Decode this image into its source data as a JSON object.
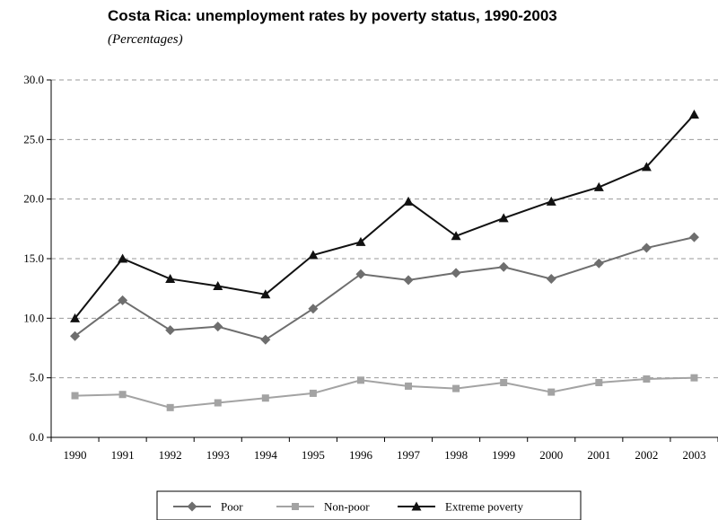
{
  "chart_data": {
    "type": "line",
    "title": "Costa Rica: unemployment rates by poverty status, 1990-2003",
    "subtitle": "(Percentages)",
    "x": [
      "1990",
      "1991",
      "1992",
      "1993",
      "1994",
      "1995",
      "1996",
      "1997",
      "1998",
      "1999",
      "2000",
      "2001",
      "2002",
      "2003"
    ],
    "ylim": [
      0,
      30
    ],
    "yticks": [
      "0.0",
      "5.0",
      "10.0",
      "15.0",
      "20.0",
      "25.0",
      "30.0"
    ],
    "grid": "horizontal dashed",
    "legend_position": "bottom",
    "series": [
      {
        "name": "Poor",
        "color": "#6e6e6e",
        "marker": "diamond",
        "values": [
          8.5,
          11.5,
          9.0,
          9.3,
          8.2,
          10.8,
          13.7,
          13.2,
          13.8,
          14.3,
          13.3,
          14.6,
          15.9,
          16.8
        ]
      },
      {
        "name": "Non-poor",
        "color": "#a3a3a3",
        "marker": "square",
        "values": [
          3.5,
          3.6,
          2.5,
          2.9,
          3.3,
          3.7,
          4.8,
          4.3,
          4.1,
          4.6,
          3.8,
          4.6,
          4.9,
          5.0
        ]
      },
      {
        "name": "Extreme poverty",
        "color": "#111111",
        "marker": "triangle",
        "values": [
          10.0,
          15.0,
          13.3,
          12.7,
          12.0,
          15.3,
          16.4,
          19.8,
          16.9,
          18.4,
          19.8,
          21.0,
          22.7,
          27.1
        ]
      }
    ]
  }
}
